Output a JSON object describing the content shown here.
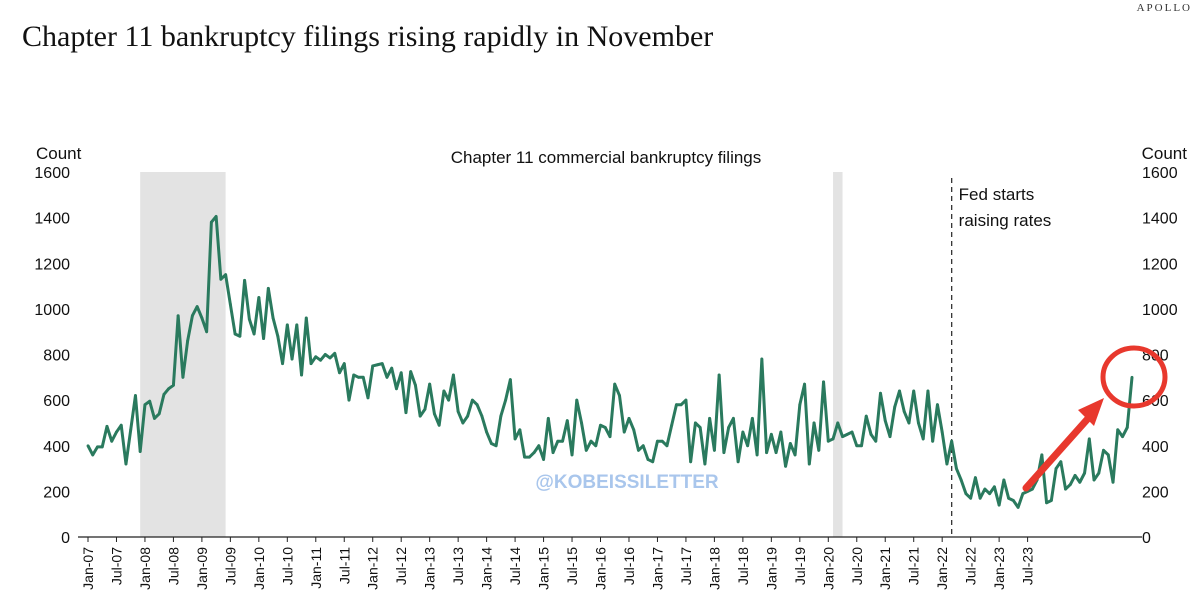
{
  "header": {
    "brand": "APOLLO",
    "title": "Chapter 11 bankruptcy filings rising rapidly in November"
  },
  "watermark": "@KOBEISSILETTER",
  "colors": {
    "line": "#2a7a5e",
    "recession": "#e3e3e3",
    "arrow": "#e8382d"
  },
  "chart_data": {
    "type": "line",
    "title": "Chapter 11 commercial bankruptcy filings",
    "ylabel_left": "Count",
    "ylabel_right": "Count",
    "ylim": [
      0,
      1600
    ],
    "yticks": [
      0,
      200,
      400,
      600,
      800,
      1000,
      1200,
      1400,
      1600
    ],
    "x_start": "Jan-07",
    "xtick_labels": [
      "Jan-07",
      "Jul-07",
      "Jan-08",
      "Jul-08",
      "Jan-09",
      "Jul-09",
      "Jan-10",
      "Jul-10",
      "Jan-11",
      "Jul-11",
      "Jan-12",
      "Jul-12",
      "Jan-13",
      "Jul-13",
      "Jan-14",
      "Jul-14",
      "Jan-15",
      "Jul-15",
      "Jan-16",
      "Jul-16",
      "Jan-17",
      "Jul-17",
      "Jan-18",
      "Jul-18",
      "Jan-19",
      "Jul-19",
      "Jan-20",
      "Jul-20",
      "Jan-21",
      "Jul-21",
      "Jan-22",
      "Jul-22",
      "Jan-23",
      "Jul-23"
    ],
    "recessions": [
      [
        "Dec-07",
        "Jun-09"
      ],
      [
        "Feb-20",
        "Apr-20"
      ]
    ],
    "annotation": {
      "date": "Mar-22",
      "text_lines": [
        "Fed starts",
        "raising rates"
      ]
    },
    "series": [
      {
        "values": [
          400,
          360,
          395,
          395,
          485,
          420,
          460,
          490,
          320,
          470,
          620,
          375,
          580,
          595,
          520,
          540,
          625,
          650,
          665,
          970,
          700,
          860,
          970,
          1010,
          960,
          900,
          1380,
          1405,
          1130,
          1150,
          1020,
          890,
          880,
          1125,
          955,
          890,
          1050,
          870,
          1090,
          960,
          880,
          760,
          930,
          780,
          930,
          710,
          960,
          760,
          790,
          775,
          800,
          785,
          805,
          720,
          760,
          600,
          710,
          700,
          700,
          610,
          750,
          755,
          760,
          700,
          740,
          650,
          720,
          545,
          725,
          665,
          530,
          560,
          670,
          540,
          490,
          640,
          600,
          710,
          550,
          500,
          530,
          600,
          580,
          530,
          460,
          410,
          400,
          530,
          600,
          690,
          430,
          470,
          350,
          350,
          370,
          400,
          340,
          520,
          370,
          420,
          420,
          510,
          360,
          600,
          500,
          380,
          420,
          400,
          490,
          480,
          440,
          670,
          620,
          460,
          520,
          470,
          380,
          400,
          340,
          330,
          420,
          420,
          400,
          490,
          580,
          580,
          600,
          330,
          500,
          480,
          320,
          520,
          380,
          710,
          370,
          480,
          520,
          330,
          460,
          400,
          520,
          360,
          780,
          370,
          450,
          370,
          460,
          310,
          410,
          360,
          580,
          670,
          320,
          500,
          380,
          680,
          420,
          430,
          500,
          440,
          450,
          460,
          400,
          400,
          530,
          450,
          420,
          630,
          510,
          440,
          570,
          640,
          550,
          500,
          640,
          500,
          430,
          640,
          420,
          580,
          460,
          320,
          420,
          300,
          250,
          190,
          170,
          260,
          170,
          210,
          190,
          220,
          140,
          250,
          170,
          160,
          130,
          190,
          200,
          210,
          250,
          360,
          150,
          160,
          300,
          330,
          210,
          230,
          270,
          240,
          280,
          430,
          250,
          280,
          380,
          360,
          240,
          470,
          440,
          480,
          700
        ]
      }
    ]
  }
}
